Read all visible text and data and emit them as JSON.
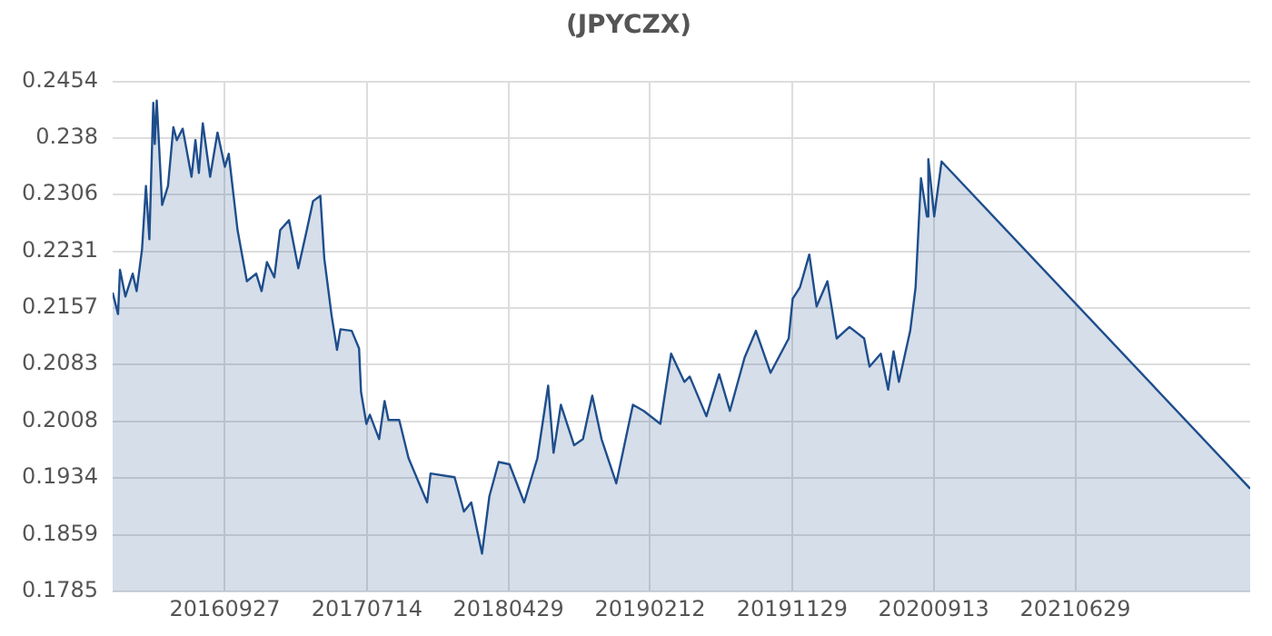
{
  "chart_data": {
    "type": "area",
    "title": "(JPYCZX)",
    "color": "#1f4e8c",
    "x": [
      "2016-02-11",
      "2016-02-22",
      "2016-02-26",
      "2016-03-08",
      "2016-03-23",
      "2016-03-31",
      "2016-04-11",
      "2016-04-19",
      "2016-04-26",
      "2016-05-04",
      "2016-05-07",
      "2016-05-11",
      "2016-05-22",
      "2016-06-03",
      "2016-06-14",
      "2016-06-21",
      "2016-07-03",
      "2016-07-21",
      "2016-07-29",
      "2016-08-05",
      "2016-08-13",
      "2016-08-28",
      "2016-09-12",
      "2016-09-27",
      "2016-10-05",
      "2016-10-23",
      "2016-11-11",
      "2016-11-30",
      "2016-12-11",
      "2016-12-22",
      "2017-01-06",
      "2017-01-18",
      "2017-02-05",
      "2017-02-24",
      "2017-03-15",
      "2017-03-26",
      "2017-04-10",
      "2017-04-18",
      "2017-05-03",
      "2017-05-14",
      "2017-05-21",
      "2017-06-13",
      "2017-06-28",
      "2017-07-02",
      "2017-07-13",
      "2017-07-20",
      "2017-08-08",
      "2017-08-19",
      "2017-08-27",
      "2017-09-18",
      "2017-10-07",
      "2017-11-14",
      "2017-11-21",
      "2018-01-09",
      "2018-01-28",
      "2018-02-12",
      "2018-03-06",
      "2018-03-21",
      "2018-04-09",
      "2018-05-01",
      "2018-05-31",
      "2018-06-27",
      "2018-07-19",
      "2018-07-30",
      "2018-08-14",
      "2018-09-10",
      "2018-09-28",
      "2018-10-17",
      "2018-11-05",
      "2018-12-05",
      "2019-01-08",
      "2019-01-30",
      "2019-03-05",
      "2019-03-27",
      "2019-04-23",
      "2019-05-04",
      "2019-06-07",
      "2019-07-03",
      "2019-07-25",
      "2019-08-24",
      "2019-09-16",
      "2019-10-16",
      "2019-11-22",
      "2019-11-30",
      "2019-12-15",
      "2020-01-03",
      "2020-01-18",
      "2020-02-09",
      "2020-02-28",
      "2020-03-25",
      "2020-04-24",
      "2020-05-05",
      "2020-05-28",
      "2020-06-12",
      "2020-06-23",
      "2020-07-04",
      "2020-07-27",
      "2020-08-07",
      "2020-08-18",
      "2020-08-30",
      "2020-09-02",
      "2020-09-14",
      "2020-09-29",
      "2022-06-21"
    ],
    "values": [
      0.2177,
      0.2149,
      0.2207,
      0.2172,
      0.2202,
      0.2179,
      0.2234,
      0.2317,
      0.2247,
      0.2426,
      0.2372,
      0.2429,
      0.2292,
      0.2317,
      0.2394,
      0.2377,
      0.2392,
      0.2329,
      0.2377,
      0.2334,
      0.2399,
      0.2329,
      0.2387,
      0.2342,
      0.2359,
      0.2259,
      0.2192,
      0.2202,
      0.2179,
      0.2217,
      0.2197,
      0.2259,
      0.2272,
      0.2209,
      0.2264,
      0.2297,
      0.2304,
      0.2222,
      0.2147,
      0.2102,
      0.2129,
      0.2127,
      0.2104,
      0.2047,
      0.2005,
      0.2017,
      0.1985,
      0.2035,
      0.201,
      0.201,
      0.196,
      0.1902,
      0.194,
      0.1935,
      0.189,
      0.1902,
      0.1835,
      0.191,
      0.1955,
      0.1952,
      0.1902,
      0.196,
      0.2055,
      0.1967,
      0.203,
      0.1977,
      0.1985,
      0.2042,
      0.1985,
      0.1927,
      0.203,
      0.2022,
      0.2005,
      0.2097,
      0.206,
      0.2067,
      0.2015,
      0.207,
      0.2022,
      0.2092,
      0.2127,
      0.2072,
      0.2117,
      0.2169,
      0.2184,
      0.2227,
      0.2159,
      0.2192,
      0.2117,
      0.2132,
      0.2117,
      0.208,
      0.2097,
      0.205,
      0.21,
      0.206,
      0.2127,
      0.2184,
      0.2327,
      0.2277,
      0.2352,
      0.2277,
      0.2349,
      0.192
    ],
    "xlim": [
      "2016-02-11",
      "2022-06-21"
    ],
    "xticks": [
      {
        "value": "2016-09-27",
        "label": "20160927"
      },
      {
        "value": "2017-07-14",
        "label": "20170714"
      },
      {
        "value": "2018-04-29",
        "label": "20180429"
      },
      {
        "value": "2019-02-12",
        "label": "20190212"
      },
      {
        "value": "2019-11-29",
        "label": "20191129"
      },
      {
        "value": "2020-09-13",
        "label": "20200913"
      },
      {
        "value": "2021-06-29",
        "label": "20210629"
      }
    ],
    "ylim": [
      0.1785,
      0.2454
    ],
    "yticks": [
      0.1785,
      0.1859,
      0.1934,
      0.2008,
      0.2083,
      0.2157,
      0.2231,
      0.2306,
      0.238,
      0.2454
    ],
    "grid": true,
    "legend": false
  }
}
